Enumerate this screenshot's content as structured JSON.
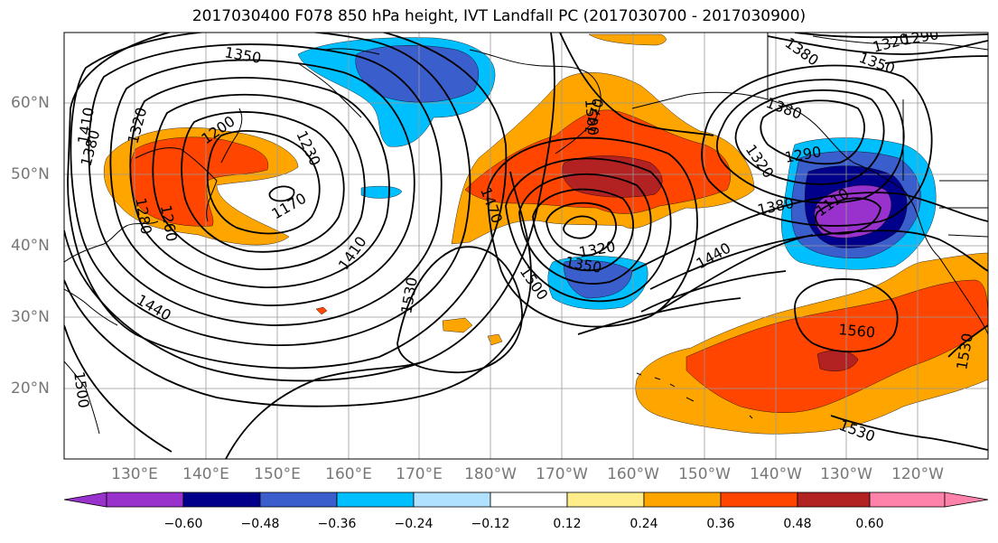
{
  "title": "2017030400 F078 850 hPa height, IVT Landfall PC (2017030700 - 2017030900)",
  "lat_labels": [
    "60°N",
    "50°N",
    "40°N",
    "30°N",
    "20°N"
  ],
  "lon_labels": [
    "130°E",
    "140°E",
    "150°E",
    "160°E",
    "170°E",
    "180°W",
    "170°W",
    "160°W",
    "150°W",
    "140°W",
    "130°W",
    "120°W"
  ],
  "contour_labels": [
    "1350",
    "1320",
    "1380",
    "1410",
    "1260",
    "1280",
    "1200",
    "1230",
    "1170",
    "1410",
    "1440",
    "1530",
    "1500",
    "1380",
    "1470",
    "1470",
    "1320",
    "1350",
    "1500",
    "1440",
    "1380",
    "1290",
    "1320",
    "1350",
    "1320",
    "1290",
    "1380",
    "1110",
    "1560",
    "1530",
    "1530",
    "1500"
  ],
  "colorbar": {
    "ticks": [
      "−0.60",
      "−0.48",
      "−0.36",
      "−0.24",
      "−0.12",
      "0.12",
      "0.24",
      "0.36",
      "0.48",
      "0.60"
    ],
    "colors": [
      "#9932cc",
      "#00008b",
      "#3a5fcd",
      "#00bfff",
      "#b0e2ff",
      "#ffffff",
      "#ffec8b",
      "#ffa500",
      "#ff4500",
      "#b22222",
      "#ff82ab"
    ]
  },
  "colors": {
    "land_outline": "#000000",
    "grid": "#999999",
    "contour": "#000000"
  }
}
